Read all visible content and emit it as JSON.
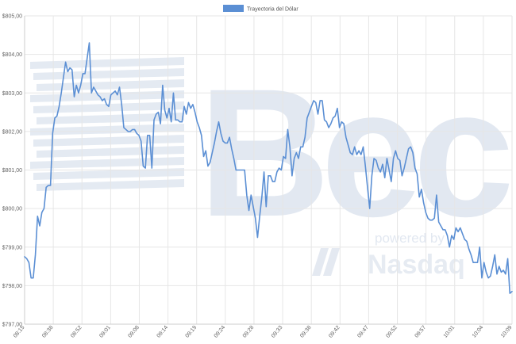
{
  "watermark": {
    "brand": "Bec",
    "tagline": "powered by",
    "partner": "Nasdaq",
    "partner_icon": "nasdaq-n-icon",
    "color": "#dbe3ee"
  },
  "chart_data": {
    "type": "line",
    "title": "",
    "xlabel": "",
    "ylabel": "",
    "ylim": [
      797,
      805
    ],
    "y_ticks": [
      "$797,00",
      "$798,00",
      "$799,00",
      "$800,00",
      "$801,00",
      "$802,00",
      "$803,00",
      "$804,00",
      "$805,00"
    ],
    "x_ticks": [
      "08:15",
      "08:38",
      "08:52",
      "09:01",
      "09:08",
      "09:14",
      "09:19",
      "09:24",
      "09:28",
      "09:33",
      "09:38",
      "09:42",
      "09:47",
      "09:52",
      "09:57",
      "10:01",
      "10:04",
      "10:09"
    ],
    "grid": true,
    "legend_position": "top-center",
    "line_color": "#5b8fd4",
    "series": [
      {
        "name": "Trayectoria del Dólar",
        "values": [
          798.75,
          798.7,
          798.6,
          798.2,
          798.2,
          798.8,
          799.8,
          799.55,
          799.9,
          800.0,
          800.55,
          800.6,
          800.6,
          801.95,
          802.35,
          802.4,
          802.65,
          803.0,
          803.4,
          803.8,
          803.55,
          803.65,
          803.6,
          802.9,
          803.2,
          803.0,
          803.2,
          803.5,
          803.5,
          803.9,
          804.3,
          803.0,
          803.15,
          803.05,
          802.95,
          802.9,
          802.8,
          802.85,
          802.7,
          802.65,
          802.95,
          803.0,
          803.05,
          802.95,
          803.15,
          802.7,
          802.1,
          802.05,
          802.0,
          802.0,
          802.05,
          802.05,
          801.95,
          801.9,
          801.75,
          801.1,
          801.05,
          801.9,
          801.9,
          801.05,
          802.3,
          802.45,
          802.5,
          802.2,
          803.2,
          802.55,
          802.35,
          802.6,
          802.25,
          803.0,
          802.3,
          802.3,
          802.25,
          802.25,
          802.65,
          802.45,
          802.75,
          802.6,
          802.7,
          802.5,
          802.25,
          802.1,
          801.9,
          801.35,
          801.5,
          801.1,
          801.2,
          801.45,
          801.7,
          802.0,
          802.25,
          801.95,
          801.75,
          801.7,
          801.7,
          801.85,
          801.55,
          801.3,
          801.0,
          801.0,
          801.0,
          801.0,
          801.0,
          800.35,
          799.95,
          800.35,
          800.05,
          799.75,
          799.25,
          799.8,
          800.3,
          800.95,
          800.05,
          800.85,
          800.85,
          800.7,
          800.7,
          800.95,
          801.05,
          801.0,
          801.35,
          801.3,
          802.05,
          801.6,
          800.85,
          801.3,
          801.45,
          801.3,
          801.6,
          801.6,
          801.85,
          802.35,
          802.5,
          802.65,
          802.8,
          802.75,
          802.45,
          802.8,
          802.8,
          802.3,
          802.25,
          802.1,
          802.2,
          802.35,
          802.4,
          802.6,
          802.1,
          802.25,
          802.2,
          801.85,
          801.65,
          801.45,
          801.4,
          801.6,
          801.4,
          801.5,
          801.4,
          801.6,
          801.1,
          800.55,
          800.0,
          800.85,
          801.3,
          801.25,
          801.05,
          800.95,
          801.15,
          800.8,
          801.3,
          801.0,
          800.7,
          801.3,
          801.5,
          801.3,
          801.25,
          800.85,
          801.05,
          801.3,
          801.55,
          801.6,
          801.45,
          801.05,
          800.9,
          800.3,
          800.5,
          800.15,
          799.9,
          799.75,
          799.7,
          799.7,
          799.75,
          800.35,
          799.65,
          799.55,
          799.45,
          799.45,
          799.3,
          799.0,
          799.3,
          799.2,
          799.5,
          799.4,
          799.5,
          799.35,
          799.2,
          799.15,
          798.95,
          798.8,
          798.6,
          798.6,
          798.6,
          799.0,
          798.2,
          798.6,
          798.35,
          798.2,
          798.25,
          798.5,
          798.8,
          798.3,
          798.5,
          798.35,
          798.4,
          798.3,
          798.7,
          797.8,
          797.85
        ]
      }
    ]
  }
}
